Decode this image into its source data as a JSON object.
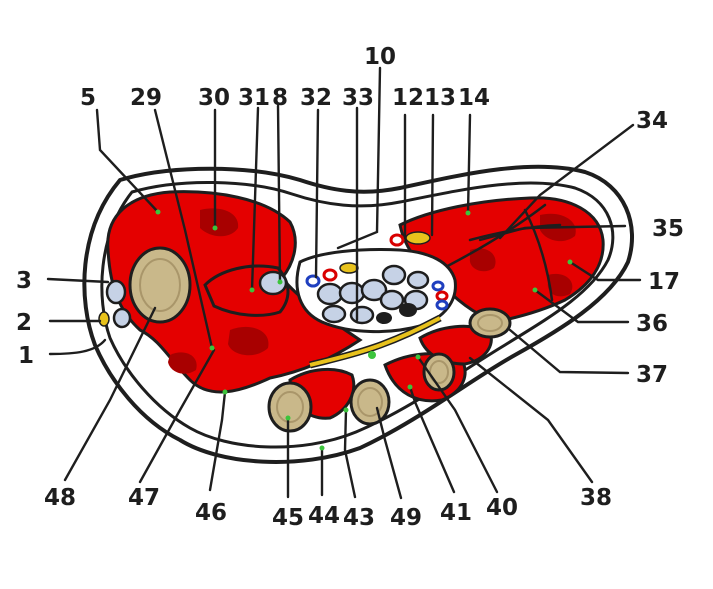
{
  "labels": {
    "l1": "1",
    "l2": "2",
    "l3": "3",
    "l5": "5",
    "l8": "8",
    "l10": "10",
    "l12": "12",
    "l13": "13",
    "l14": "14",
    "l17": "17",
    "l29": "29",
    "l30": "30",
    "l31": "31",
    "l32": "32",
    "l33": "33",
    "l34": "34",
    "l35": "35",
    "l36": "36",
    "l37": "37",
    "l38": "38",
    "l40": "40",
    "l41": "41",
    "l43": "43",
    "l44": "44",
    "l45": "45",
    "l46": "46",
    "l47": "47",
    "l48": "48",
    "l49": "49"
  },
  "colors": {
    "muscle": "#e40000",
    "muscle_dark": "#a80000",
    "bone": "#c9b88a",
    "tendon": "#c6d2e6",
    "nerve": "#e8c21c",
    "artery": "#d90000",
    "vein": "#1f3fbf",
    "outline": "#1e1e1e"
  }
}
